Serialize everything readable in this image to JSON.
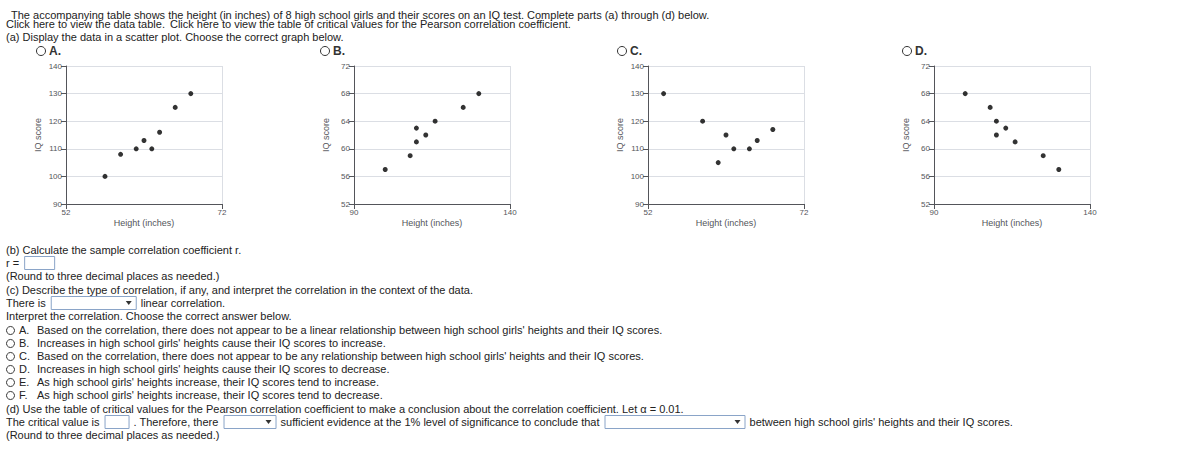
{
  "title": "The accompanying table shows the height (in inches) of 8 high school girls and their scores on an IQ test. Complete parts (a) through (d) below.",
  "annotations": [
    "Click here to view the data table.",
    "Click here to view the table of critical values for the Pearson correlation coefficient.",
    "(a) Display the data in a scatter plot. Choose the correct graph below.",
    "(b) Calculate the sample correlation coefficient r.",
    "r =",
    "(Round to three decimal places as needed.)",
    "(c) Describe the type of correlation, if any, and interpret the correlation in the context of the data.",
    "There is",
    "linear correlation.",
    "Interpret the correlation. Choose the correct answer below.",
    "A.",
    "Based on the correlation, there does not appear to be a linear relationship between high school girls' heights and their IQ scores.",
    "B.",
    "Increases in high school girls' heights cause their IQ scores to increase.",
    "C.",
    "Based on the correlation, there does not appear to be any relationship between high school girls' heights and their IQ scores.",
    "D.",
    "Increases in high school girls' heights cause their IQ scores to decrease.",
    "E.",
    "As high school girls' heights increase, their IQ scores tend to increase.",
    "F.",
    "As high school girls' heights increase, their IQ scores tend to decrease.",
    "(d) Use the table of critical values for the Pearson correlation coefficient to make a conclusion about the correlation coefficient. Let α = 0.01.",
    "The critical value is",
    ". Therefore, there",
    "sufficient evidence at the 1% level of significance to conclude that",
    "between high school girls' heights and their IQ scores.",
    "(Round to three decimal places as needed.)"
  ],
  "chart_data": [
    {
      "type": "scatter",
      "title": "A.",
      "x": [
        57,
        59,
        61,
        62,
        63,
        64,
        66,
        68
      ],
      "values": [
        100,
        108,
        110,
        113,
        110,
        116,
        125,
        130
      ],
      "xlim": [
        52,
        72
      ],
      "ylim": [
        90,
        140
      ],
      "xticks": [
        52,
        72
      ],
      "yticks": [
        90,
        100,
        110,
        120,
        130,
        140
      ],
      "xlabel": "Height (inches)",
      "ylabel": "IQ score",
      "grid": true,
      "color": "#000000"
    },
    {
      "type": "scatter",
      "title": "B.",
      "x": [
        100,
        108,
        110,
        113,
        110,
        116,
        125,
        130
      ],
      "values": [
        57,
        59,
        61,
        62,
        63,
        64,
        66,
        68
      ],
      "xlim": [
        90,
        140
      ],
      "ylim": [
        52,
        72
      ],
      "xticks": [
        90,
        140
      ],
      "yticks": [
        52,
        56,
        60,
        64,
        68,
        72
      ],
      "xlabel": "Height (inches)",
      "ylabel": "IQ score",
      "grid": true,
      "color": "#000000"
    },
    {
      "type": "scatter",
      "title": "C.",
      "x": [
        54,
        59,
        61,
        62,
        63,
        65,
        66,
        68
      ],
      "values": [
        130,
        120,
        105,
        115,
        110,
        110,
        113,
        117
      ],
      "xlim": [
        52,
        72
      ],
      "ylim": [
        90,
        140
      ],
      "xticks": [
        52,
        72
      ],
      "yticks": [
        90,
        100,
        110,
        120,
        130,
        140
      ],
      "xlabel": "Height (inches)",
      "ylabel": "IQ score",
      "grid": true,
      "color": "#000000"
    },
    {
      "type": "scatter",
      "title": "D.",
      "x": [
        100,
        108,
        110,
        113,
        110,
        116,
        125,
        130
      ],
      "values": [
        68,
        66,
        64,
        63,
        62,
        61,
        59,
        57
      ],
      "xlim": [
        90,
        140
      ],
      "ylim": [
        52,
        72
      ],
      "xticks": [
        90,
        140
      ],
      "yticks": [
        52,
        56,
        60,
        64,
        68,
        72
      ],
      "xlabel": "Height (inches)",
      "ylabel": "IQ score",
      "grid": true,
      "color": "#000000"
    }
  ]
}
